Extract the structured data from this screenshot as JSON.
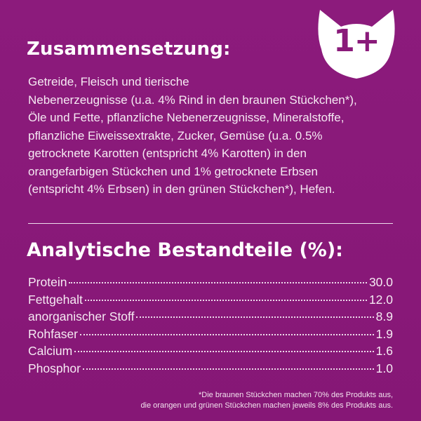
{
  "badge": {
    "label": "1+",
    "shape_icon": "cat-head-icon"
  },
  "composition": {
    "title": "Zusammensetzung:",
    "lines": [
      "Getreide, Fleisch und tierische",
      "Nebenerzeugnisse (u.a. 4% Rind in den braunen Stückchen*),",
      "Öle und Fette, pflanzliche Nebenerzeugnisse, Mineralstoffe,",
      "pflanzliche Eiweissextrakte, Zucker, Gemüse (u.a. 0.5%",
      "getrocknete Karotten (entspricht 4% Karotten) in den",
      "orangefarbigen Stückchen und 1% getrocknete Erbsen",
      "(entspricht 4% Erbsen) in den grünen Stückchen*), Hefen."
    ]
  },
  "analysis": {
    "title": "Analytische Bestandteile (%):",
    "rows": [
      {
        "label": "Protein",
        "value": "30.0"
      },
      {
        "label": "Fettgehalt",
        "value": "12.0"
      },
      {
        "label": "anorganischer Stoff",
        "value": "8.9"
      },
      {
        "label": "Rohfaser",
        "value": "1.9"
      },
      {
        "label": "Calcium",
        "value": "1.6"
      },
      {
        "label": "Phosphor",
        "value": "1.0"
      }
    ]
  },
  "footnote": {
    "lines": [
      "*Die braunen Stückchen machen 70% des Produkts aus,",
      "die orangen und grünen Stückchen machen jeweils 8% des Produkts aus."
    ]
  },
  "colors": {
    "background": "#8a1a7a",
    "text": "#ffffff",
    "badge_fill": "#ffffff",
    "badge_text": "#8a1a7a"
  }
}
